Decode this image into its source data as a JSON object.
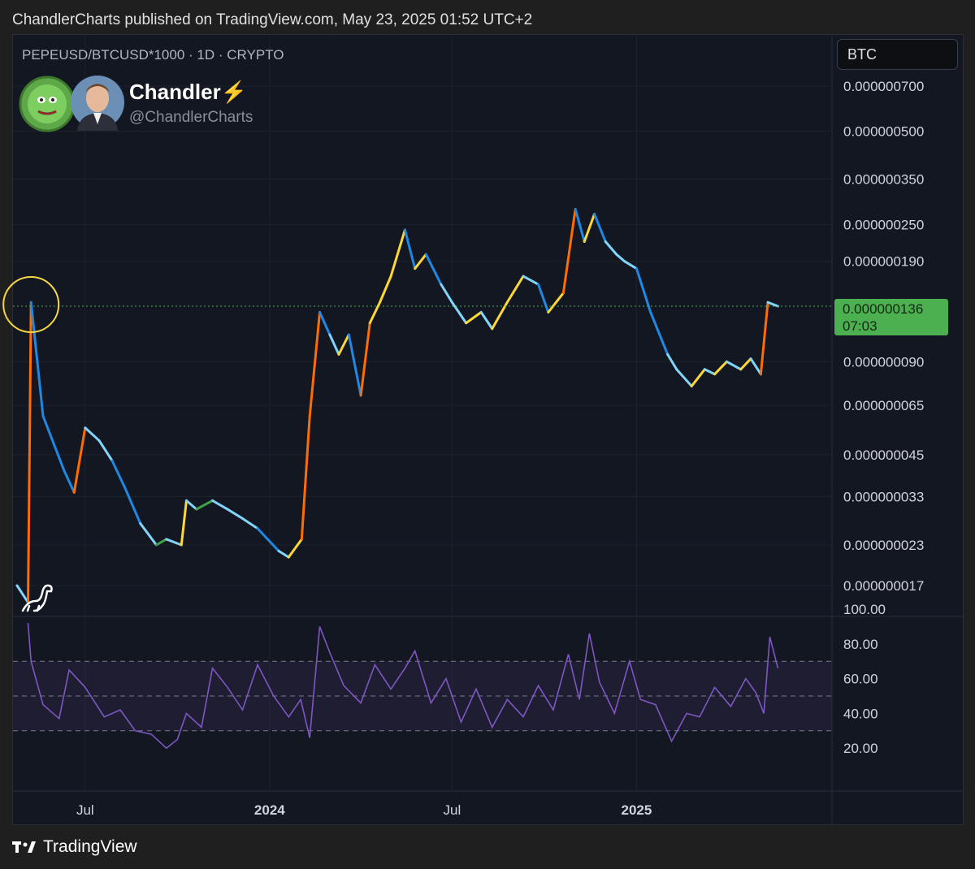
{
  "header": {
    "published_by": "ChandlerCharts published on TradingView.com, May 23, 2025 01:52 UTC+2"
  },
  "symbol_line": "PEPEUSD/BTCUSD*1000 · 1D · CRYPTO",
  "author": {
    "name": "Chandler⚡",
    "handle": "@ChandlerCharts"
  },
  "currency": "BTC",
  "last_price": {
    "value": "0.000000136",
    "countdown": "07:03",
    "color": "#4caf50"
  },
  "footer": {
    "brand": "TradingView"
  },
  "colors": {
    "background": "#131722",
    "rsi_line": "#7e57c2",
    "highlight_circle": "#f5d742"
  },
  "chart_data": [
    {
      "type": "line",
      "scale": "log",
      "x_ticks": [
        "Jul",
        "2024",
        "Jul",
        "2025"
      ],
      "y_ticks": [
        "0.000000700",
        "0.000000500",
        "0.000000350",
        "0.000000250",
        "0.000000190",
        "0.000000090",
        "0.000000065",
        "0.000000045",
        "0.000000033",
        "0.000000023",
        "0.000000017"
      ],
      "x": [
        "2023-04-24",
        "2023-05-05",
        "2023-05-08",
        "2023-05-20",
        "2023-06-10",
        "2023-06-20",
        "2023-07-01",
        "2023-07-15",
        "2023-07-28",
        "2023-08-10",
        "2023-08-25",
        "2023-09-10",
        "2023-09-20",
        "2023-10-05",
        "2023-10-10",
        "2023-10-20",
        "2023-11-05",
        "2023-11-20",
        "2023-12-05",
        "2023-12-20",
        "2024-01-10",
        "2024-01-20",
        "2024-02-02",
        "2024-02-10",
        "2024-02-20",
        "2024-03-01",
        "2024-03-10",
        "2024-03-20",
        "2024-04-01",
        "2024-04-10",
        "2024-04-20",
        "2024-05-01",
        "2024-05-15",
        "2024-05-25",
        "2024-06-05",
        "2024-06-20",
        "2024-07-01",
        "2024-07-15",
        "2024-07-30",
        "2024-08-10",
        "2024-08-25",
        "2024-09-10",
        "2024-09-25",
        "2024-10-05",
        "2024-10-20",
        "2024-11-01",
        "2024-11-10",
        "2024-11-20",
        "2024-12-01",
        "2024-12-12",
        "2024-12-20",
        "2025-01-01",
        "2025-01-15",
        "2025-02-01",
        "2025-02-10",
        "2025-02-25",
        "2025-03-10",
        "2025-03-20",
        "2025-04-01",
        "2025-04-15",
        "2025-04-25",
        "2025-05-05",
        "2025-05-12",
        "2025-05-22"
      ],
      "values": [
        1.7e-08,
        1.5e-08,
        1.4e-07,
        6e-08,
        4e-08,
        3.4e-08,
        5.5e-08,
        5e-08,
        4.3e-08,
        3.5e-08,
        2.7e-08,
        2.3e-08,
        2.4e-08,
        2.3e-08,
        3.2e-08,
        3e-08,
        3.2e-08,
        3e-08,
        2.8e-08,
        2.6e-08,
        2.2e-08,
        2.1e-08,
        2.4e-08,
        6e-08,
        1.3e-07,
        1.1e-07,
        9.5e-08,
        1.1e-07,
        7e-08,
        1.2e-07,
        1.4e-07,
        1.7e-07,
        2.4e-07,
        1.8e-07,
        2e-07,
        1.6e-07,
        1.4e-07,
        1.2e-07,
        1.3e-07,
        1.15e-07,
        1.4e-07,
        1.7e-07,
        1.6e-07,
        1.3e-07,
        1.5e-07,
        2.8e-07,
        2.2e-07,
        2.7e-07,
        2.2e-07,
        2e-07,
        1.9e-07,
        1.8e-07,
        1.3e-07,
        9.5e-08,
        8.5e-08,
        7.5e-08,
        8.5e-08,
        8.2e-08,
        9e-08,
        8.5e-08,
        9.2e-08,
        8.2e-08,
        1.4e-07,
        1.36e-07
      ]
    },
    {
      "type": "line",
      "y_ticks": [
        "100.00",
        "80.00",
        "60.00",
        "40.00",
        "20.00"
      ],
      "ylim": [
        0,
        100
      ],
      "bands": [
        30,
        50,
        70
      ],
      "x": [
        "2023-05-05",
        "2023-05-08",
        "2023-05-20",
        "2023-06-05",
        "2023-06-15",
        "2023-07-01",
        "2023-07-20",
        "2023-08-05",
        "2023-08-20",
        "2023-09-05",
        "2023-09-20",
        "2023-10-01",
        "2023-10-10",
        "2023-10-25",
        "2023-11-05",
        "2023-11-20",
        "2023-12-05",
        "2023-12-20",
        "2024-01-05",
        "2024-01-20",
        "2024-02-01",
        "2024-02-10",
        "2024-02-20",
        "2024-03-01",
        "2024-03-15",
        "2024-04-01",
        "2024-04-15",
        "2024-05-01",
        "2024-05-15",
        "2024-05-25",
        "2024-06-10",
        "2024-06-25",
        "2024-07-10",
        "2024-07-25",
        "2024-08-10",
        "2024-08-25",
        "2024-09-10",
        "2024-09-25",
        "2024-10-10",
        "2024-10-25",
        "2024-11-05",
        "2024-11-15",
        "2024-11-25",
        "2024-12-10",
        "2024-12-25",
        "2025-01-05",
        "2025-01-20",
        "2025-02-05",
        "2025-02-20",
        "2025-03-05",
        "2025-03-20",
        "2025-04-05",
        "2025-04-20",
        "2025-04-30",
        "2025-05-08",
        "2025-05-14",
        "2025-05-22"
      ],
      "values": [
        92,
        70,
        45,
        37,
        65,
        55,
        38,
        42,
        30,
        28,
        20,
        25,
        40,
        32,
        66,
        55,
        42,
        68,
        50,
        38,
        48,
        26,
        90,
        75,
        56,
        46,
        68,
        54,
        66,
        76,
        46,
        60,
        35,
        54,
        32,
        48,
        38,
        56,
        42,
        74,
        48,
        86,
        58,
        40,
        70,
        48,
        45,
        24,
        40,
        38,
        55,
        44,
        60,
        52,
        40,
        84,
        66
      ]
    }
  ]
}
